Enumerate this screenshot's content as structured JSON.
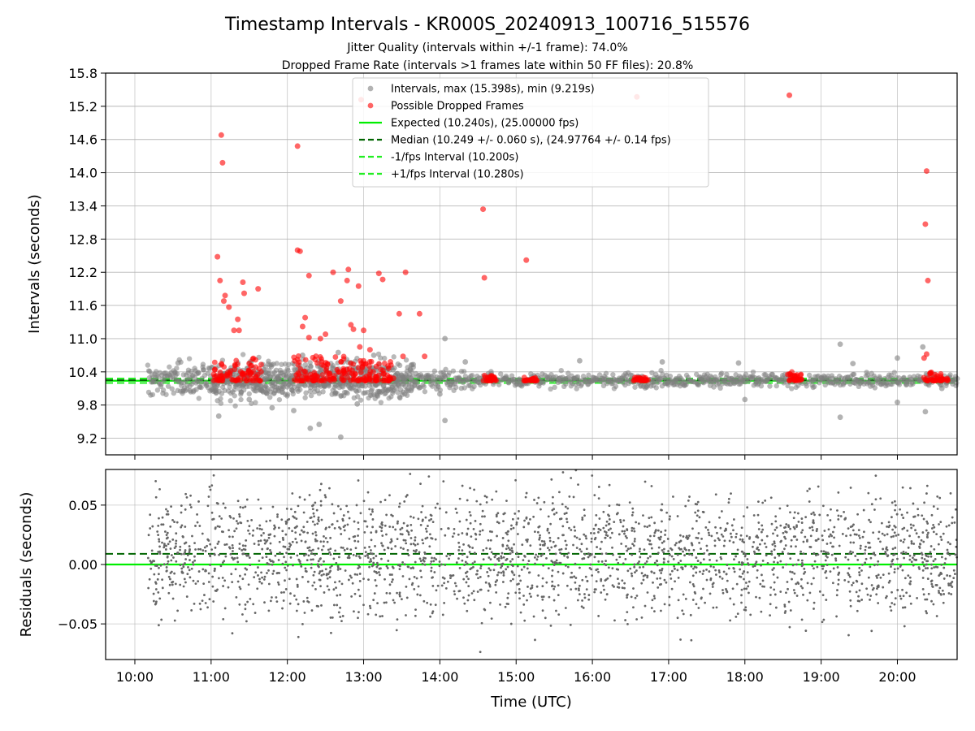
{
  "chart_data": [
    {
      "type": "scatter",
      "title": "Timestamp Intervals - KR000S_20240913_100716_515576",
      "subtitle_1": "Jitter Quality (intervals within +/-1 frame): 74.0%",
      "subtitle_2": "Dropped Frame Rate (intervals >1 frames late within 50 FF files): 20.8%",
      "ylabel": "Intervals (seconds)",
      "ylim": [
        8.9,
        15.8
      ],
      "y_ticks": [
        "15.8",
        "15.2",
        "14.6",
        "14.0",
        "13.4",
        "12.8",
        "12.2",
        "11.6",
        "11.0",
        "10.4",
        "9.8",
        "9.2"
      ],
      "x_time_range": [
        "09:37",
        "20:47"
      ],
      "grid": true,
      "legend_position": "top-center",
      "legend": [
        {
          "label": "Intervals, max (15.398s), min (9.219s)",
          "kind": "marker",
          "color": "#808080"
        },
        {
          "label": "Possible Dropped Frames",
          "kind": "marker",
          "color": "#ff0000"
        },
        {
          "label": "Expected (10.240s), (25.00000 fps)",
          "kind": "line",
          "color": "#00ee00",
          "dash": "solid"
        },
        {
          "label": "Median (10.249 +/- 0.060 s), (24.97764 +/- 0.14 fps)",
          "kind": "line",
          "color": "#006400",
          "dash": "dashed"
        },
        {
          "label": "-1/fps Interval (10.200s)",
          "kind": "line",
          "color": "#22ee22",
          "dash": "dashed"
        },
        {
          "label": "+1/fps Interval (10.280s)",
          "kind": "line",
          "color": "#22ee22",
          "dash": "dashed"
        }
      ],
      "reference_lines": {
        "expected": 10.24,
        "median": 10.249,
        "minus_one_frame": 10.2,
        "plus_one_frame": 10.28
      },
      "series": [
        {
          "name": "Intervals, max (15.398s), min (9.219s)",
          "color": "#808080",
          "outlier_points": [
            {
              "x": "10:34",
              "y": 10.56
            },
            {
              "x": "10:50",
              "y": 10.38
            },
            {
              "x": "11:02",
              "y": 10.05
            },
            {
              "x": "11:06",
              "y": 9.6
            },
            {
              "x": "11:30",
              "y": 9.9
            },
            {
              "x": "11:48",
              "y": 9.75
            },
            {
              "x": "12:05",
              "y": 9.7
            },
            {
              "x": "12:12",
              "y": 10.7
            },
            {
              "x": "12:18",
              "y": 9.38
            },
            {
              "x": "12:25",
              "y": 9.45
            },
            {
              "x": "12:40",
              "y": 10.75
            },
            {
              "x": "12:42",
              "y": 9.22
            },
            {
              "x": "12:55",
              "y": 9.82
            },
            {
              "x": "13:08",
              "y": 10.7
            },
            {
              "x": "14:00",
              "y": 10.0
            },
            {
              "x": "14:04",
              "y": 11.0
            },
            {
              "x": "14:04",
              "y": 9.52
            },
            {
              "x": "14:20",
              "y": 10.58
            },
            {
              "x": "15:50",
              "y": 10.6
            },
            {
              "x": "16:55",
              "y": 10.58
            },
            {
              "x": "17:55",
              "y": 10.56
            },
            {
              "x": "18:00",
              "y": 9.9
            },
            {
              "x": "19:15",
              "y": 10.9
            },
            {
              "x": "19:15",
              "y": 9.58
            },
            {
              "x": "19:25",
              "y": 10.55
            },
            {
              "x": "20:00",
              "y": 10.65
            },
            {
              "x": "20:00",
              "y": 9.85
            },
            {
              "x": "20:20",
              "y": 10.85
            },
            {
              "x": "20:22",
              "y": 9.68
            },
            {
              "x": "20:35",
              "y": 10.1
            }
          ]
        },
        {
          "name": "Possible Dropped Frames",
          "color": "#ff0000",
          "points": [
            {
              "x": "11:05",
              "y": 12.48
            },
            {
              "x": "11:07",
              "y": 12.05
            },
            {
              "x": "11:08",
              "y": 14.68
            },
            {
              "x": "11:09",
              "y": 14.18
            },
            {
              "x": "11:10",
              "y": 11.68
            },
            {
              "x": "11:11",
              "y": 11.78
            },
            {
              "x": "11:14",
              "y": 11.57
            },
            {
              "x": "11:18",
              "y": 11.15
            },
            {
              "x": "11:21",
              "y": 11.35
            },
            {
              "x": "11:22",
              "y": 11.15
            },
            {
              "x": "11:25",
              "y": 12.02
            },
            {
              "x": "11:26",
              "y": 11.82
            },
            {
              "x": "11:37",
              "y": 11.9
            },
            {
              "x": "12:08",
              "y": 14.48
            },
            {
              "x": "12:08",
              "y": 12.6
            },
            {
              "x": "12:10",
              "y": 12.58
            },
            {
              "x": "12:12",
              "y": 11.22
            },
            {
              "x": "12:14",
              "y": 11.38
            },
            {
              "x": "12:17",
              "y": 12.14
            },
            {
              "x": "12:17",
              "y": 11.02
            },
            {
              "x": "12:26",
              "y": 11.0
            },
            {
              "x": "12:30",
              "y": 11.08
            },
            {
              "x": "12:36",
              "y": 12.2
            },
            {
              "x": "12:42",
              "y": 11.68
            },
            {
              "x": "12:47",
              "y": 12.05
            },
            {
              "x": "12:48",
              "y": 12.25
            },
            {
              "x": "12:50",
              "y": 11.25
            },
            {
              "x": "12:52",
              "y": 11.17
            },
            {
              "x": "12:58",
              "y": 15.32
            },
            {
              "x": "13:00",
              "y": 11.15
            },
            {
              "x": "12:56",
              "y": 11.95
            },
            {
              "x": "12:57",
              "y": 10.85
            },
            {
              "x": "13:00",
              "y": 10.6
            },
            {
              "x": "13:05",
              "y": 10.8
            },
            {
              "x": "13:12",
              "y": 12.18
            },
            {
              "x": "13:15",
              "y": 12.07
            },
            {
              "x": "13:28",
              "y": 11.45
            },
            {
              "x": "13:31",
              "y": 10.68
            },
            {
              "x": "13:33",
              "y": 12.2
            },
            {
              "x": "13:44",
              "y": 11.45
            },
            {
              "x": "13:48",
              "y": 10.68
            },
            {
              "x": "14:34",
              "y": 13.34
            },
            {
              "x": "14:35",
              "y": 12.1
            },
            {
              "x": "15:08",
              "y": 12.42
            },
            {
              "x": "16:35",
              "y": 15.37
            },
            {
              "x": "18:35",
              "y": 15.4
            },
            {
              "x": "20:22",
              "y": 13.07
            },
            {
              "x": "20:23",
              "y": 14.03
            },
            {
              "x": "20:24",
              "y": 12.05
            },
            {
              "x": "20:23",
              "y": 10.72
            },
            {
              "x": "20:21",
              "y": 10.65
            }
          ],
          "clusters_near_expected": [
            {
              "from": "11:02",
              "to": "11:40",
              "y_min": 10.24,
              "y_max": 10.65
            },
            {
              "from": "12:05",
              "to": "12:48",
              "y_min": 10.24,
              "y_max": 10.7
            },
            {
              "from": "12:48",
              "to": "13:25",
              "y_min": 10.24,
              "y_max": 10.6
            },
            {
              "from": "14:33",
              "to": "14:45",
              "y_min": 10.24,
              "y_max": 10.35
            },
            {
              "from": "15:05",
              "to": "15:17",
              "y_min": 10.24,
              "y_max": 10.3
            },
            {
              "from": "16:32",
              "to": "16:44",
              "y_min": 10.24,
              "y_max": 10.3
            },
            {
              "from": "18:32",
              "to": "18:45",
              "y_min": 10.24,
              "y_max": 10.4
            },
            {
              "from": "20:20",
              "to": "20:40",
              "y_min": 10.24,
              "y_max": 10.4
            }
          ]
        }
      ]
    },
    {
      "type": "scatter",
      "xlabel": "Time (UTC)",
      "ylabel": "Residuals (seconds)",
      "ylim": [
        -0.08,
        0.08
      ],
      "y_ticks": [
        "0.05",
        "0.00",
        "−0.05"
      ],
      "x_ticks": [
        "10:00",
        "11:00",
        "12:00",
        "13:00",
        "14:00",
        "15:00",
        "16:00",
        "17:00",
        "18:00",
        "19:00",
        "20:00"
      ],
      "x_time_range": [
        "09:37",
        "20:47"
      ],
      "grid": true,
      "reference_lines": {
        "zero": 0.0,
        "median_offset": 0.009
      },
      "series": [
        {
          "name": "residuals",
          "color": "#666666",
          "x_range": [
            "10:10",
            "20:47"
          ],
          "y_range": [
            -0.08,
            0.08
          ],
          "approx_count": 2500
        }
      ]
    }
  ],
  "colors": {
    "interval": "#808080",
    "dropped": "#ff0000",
    "expected": "#00ee00",
    "median": "#006400",
    "fps_band": "#22ee22",
    "residual": "#666666",
    "grid": "#b0b0b0"
  }
}
